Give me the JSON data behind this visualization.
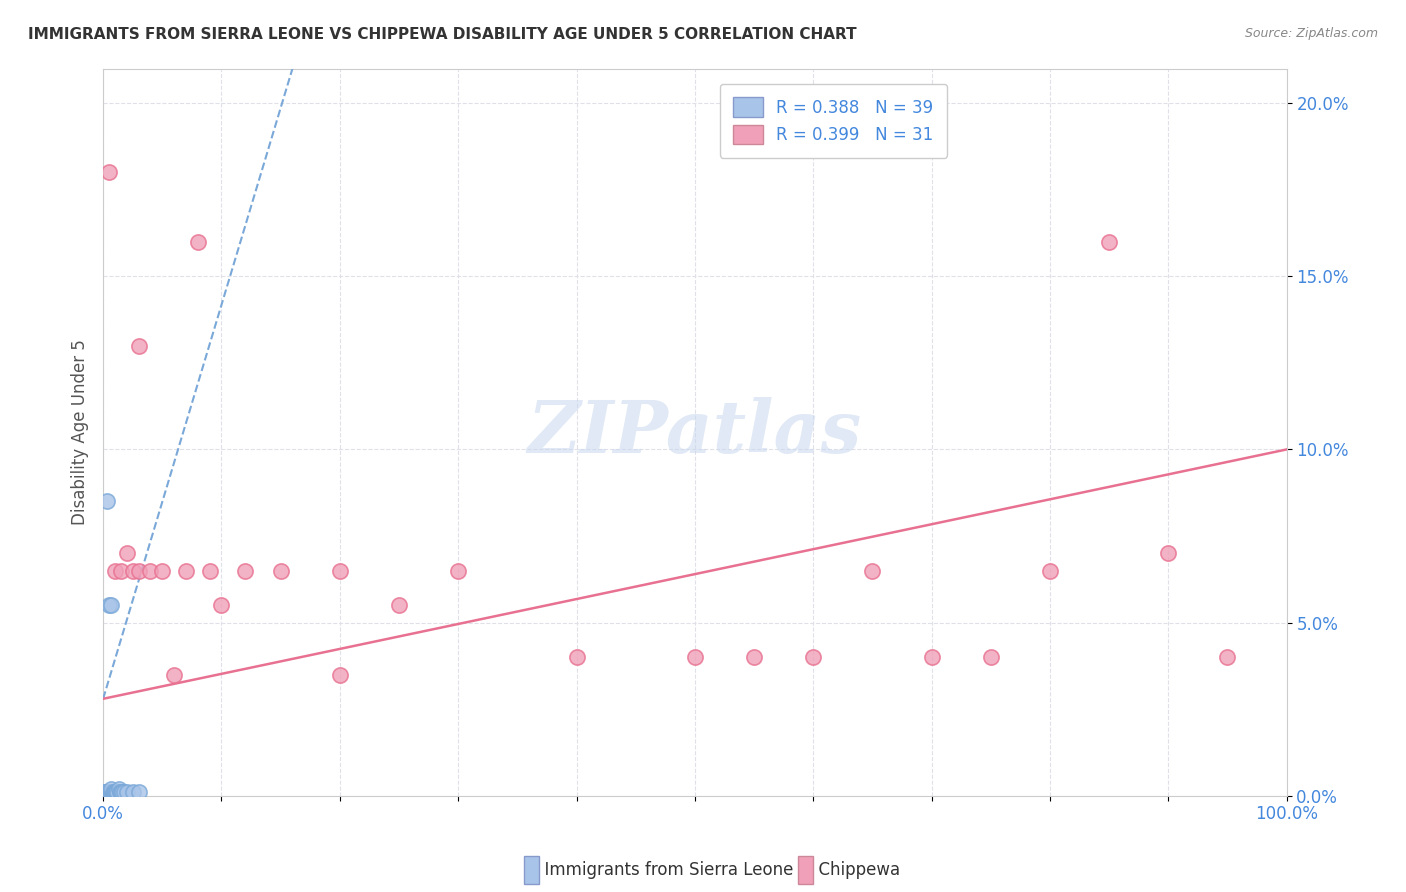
{
  "title": "IMMIGRANTS FROM SIERRA LEONE VS CHIPPEWA DISABILITY AGE UNDER 5 CORRELATION CHART",
  "source": "Source: ZipAtlas.com",
  "ylabel_label": "Disability Age Under 5",
  "xlim": [
    0.0,
    1.0
  ],
  "ylim": [
    0.0,
    0.21
  ],
  "xtick_left_label": "0.0%",
  "xtick_right_label": "100.0%",
  "yticks": [
    0.0,
    0.05,
    0.1,
    0.15,
    0.2
  ],
  "ytick_labels": [
    "0.0%",
    "5.0%",
    "10.0%",
    "15.0%",
    "20.0%"
  ],
  "color_sierra": "#a8c4e8",
  "color_chippewa": "#f0a0b8",
  "trendline_sierra_color": "#7aa8d8",
  "trendline_chippewa_color": "#e87090",
  "watermark_text": "ZIPatlas",
  "R_sierra": 0.388,
  "N_sierra": 39,
  "R_chippewa": 0.399,
  "N_chippewa": 31,
  "legend_color_sierra": "#a8c4e8",
  "legend_color_chippewa": "#f0a0b8",
  "legend_text_color": "#4488dd",
  "axis_tick_color": "#4488dd",
  "sl_x": [
    0.0005,
    0.001,
    0.001,
    0.0015,
    0.002,
    0.002,
    0.002,
    0.003,
    0.003,
    0.003,
    0.004,
    0.004,
    0.004,
    0.005,
    0.005,
    0.005,
    0.006,
    0.006,
    0.007,
    0.007,
    0.007,
    0.008,
    0.008,
    0.009,
    0.009,
    0.01,
    0.011,
    0.012,
    0.013,
    0.014,
    0.015,
    0.016,
    0.018,
    0.02,
    0.025,
    0.03,
    0.003,
    0.005,
    0.007
  ],
  "sl_y": [
    0.0,
    0.0,
    0.001,
    0.0,
    0.0,
    0.0,
    0.001,
    0.0,
    0.0,
    0.0,
    0.001,
    0.0,
    0.001,
    0.0,
    0.001,
    0.0,
    0.001,
    0.0,
    0.0,
    0.001,
    0.002,
    0.001,
    0.0,
    0.0,
    0.001,
    0.001,
    0.001,
    0.001,
    0.002,
    0.001,
    0.001,
    0.001,
    0.001,
    0.001,
    0.001,
    0.001,
    0.085,
    0.055,
    0.055
  ],
  "ch_x": [
    0.005,
    0.01,
    0.015,
    0.02,
    0.025,
    0.03,
    0.04,
    0.05,
    0.07,
    0.08,
    0.09,
    0.1,
    0.12,
    0.15,
    0.2,
    0.25,
    0.3,
    0.4,
    0.5,
    0.55,
    0.6,
    0.65,
    0.7,
    0.75,
    0.8,
    0.85,
    0.9,
    0.95,
    0.03,
    0.06,
    0.2
  ],
  "ch_y": [
    0.18,
    0.065,
    0.065,
    0.07,
    0.065,
    0.065,
    0.065,
    0.065,
    0.065,
    0.16,
    0.065,
    0.055,
    0.065,
    0.065,
    0.065,
    0.055,
    0.065,
    0.04,
    0.04,
    0.04,
    0.04,
    0.065,
    0.04,
    0.04,
    0.065,
    0.16,
    0.07,
    0.04,
    0.13,
    0.035,
    0.035
  ],
  "sl_trendline_x0": 0.0,
  "sl_trendline_x1": 0.16,
  "sl_trendline_y0": 0.028,
  "sl_trendline_y1": 0.21,
  "ch_trendline_x0": 0.0,
  "ch_trendline_x1": 1.0,
  "ch_trendline_y0": 0.028,
  "ch_trendline_y1": 0.1
}
